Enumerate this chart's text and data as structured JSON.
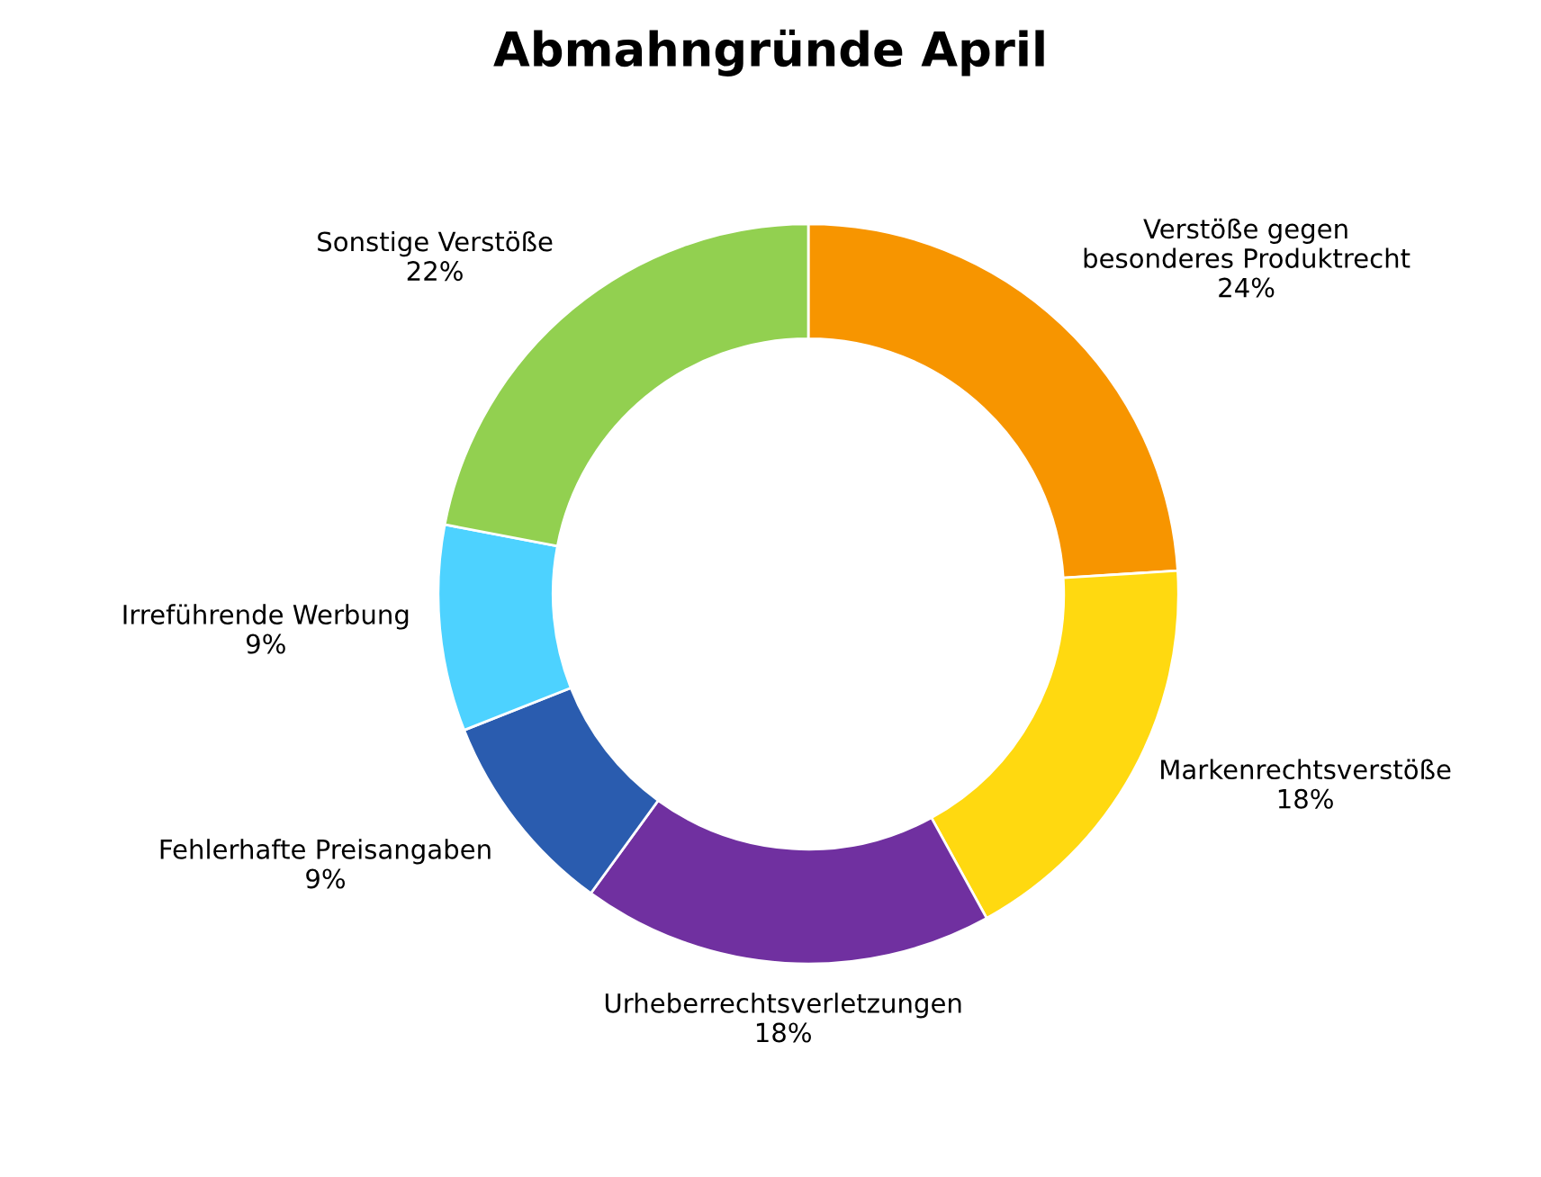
{
  "chart_data": {
    "type": "donut",
    "title": "Abmahngründe April",
    "categories": [
      "Verstöße gegen\nbesonderes Produktrecht",
      "Markenrechtsverstöße",
      "Urheberrechtsverletzungen",
      "Fehlerhafte Preisangaben",
      "Irreführende Werbung",
      "Sonstige Verstöße"
    ],
    "values": [
      24,
      18,
      18,
      9,
      9,
      22
    ],
    "value_labels": [
      "24%",
      "18%",
      "18%",
      "9%",
      "9%",
      "22%"
    ],
    "colors": [
      "#f79500",
      "#ffd910",
      "#7030a0",
      "#2a5caf",
      "#4dd2ff",
      "#92d050"
    ],
    "legend": false
  }
}
